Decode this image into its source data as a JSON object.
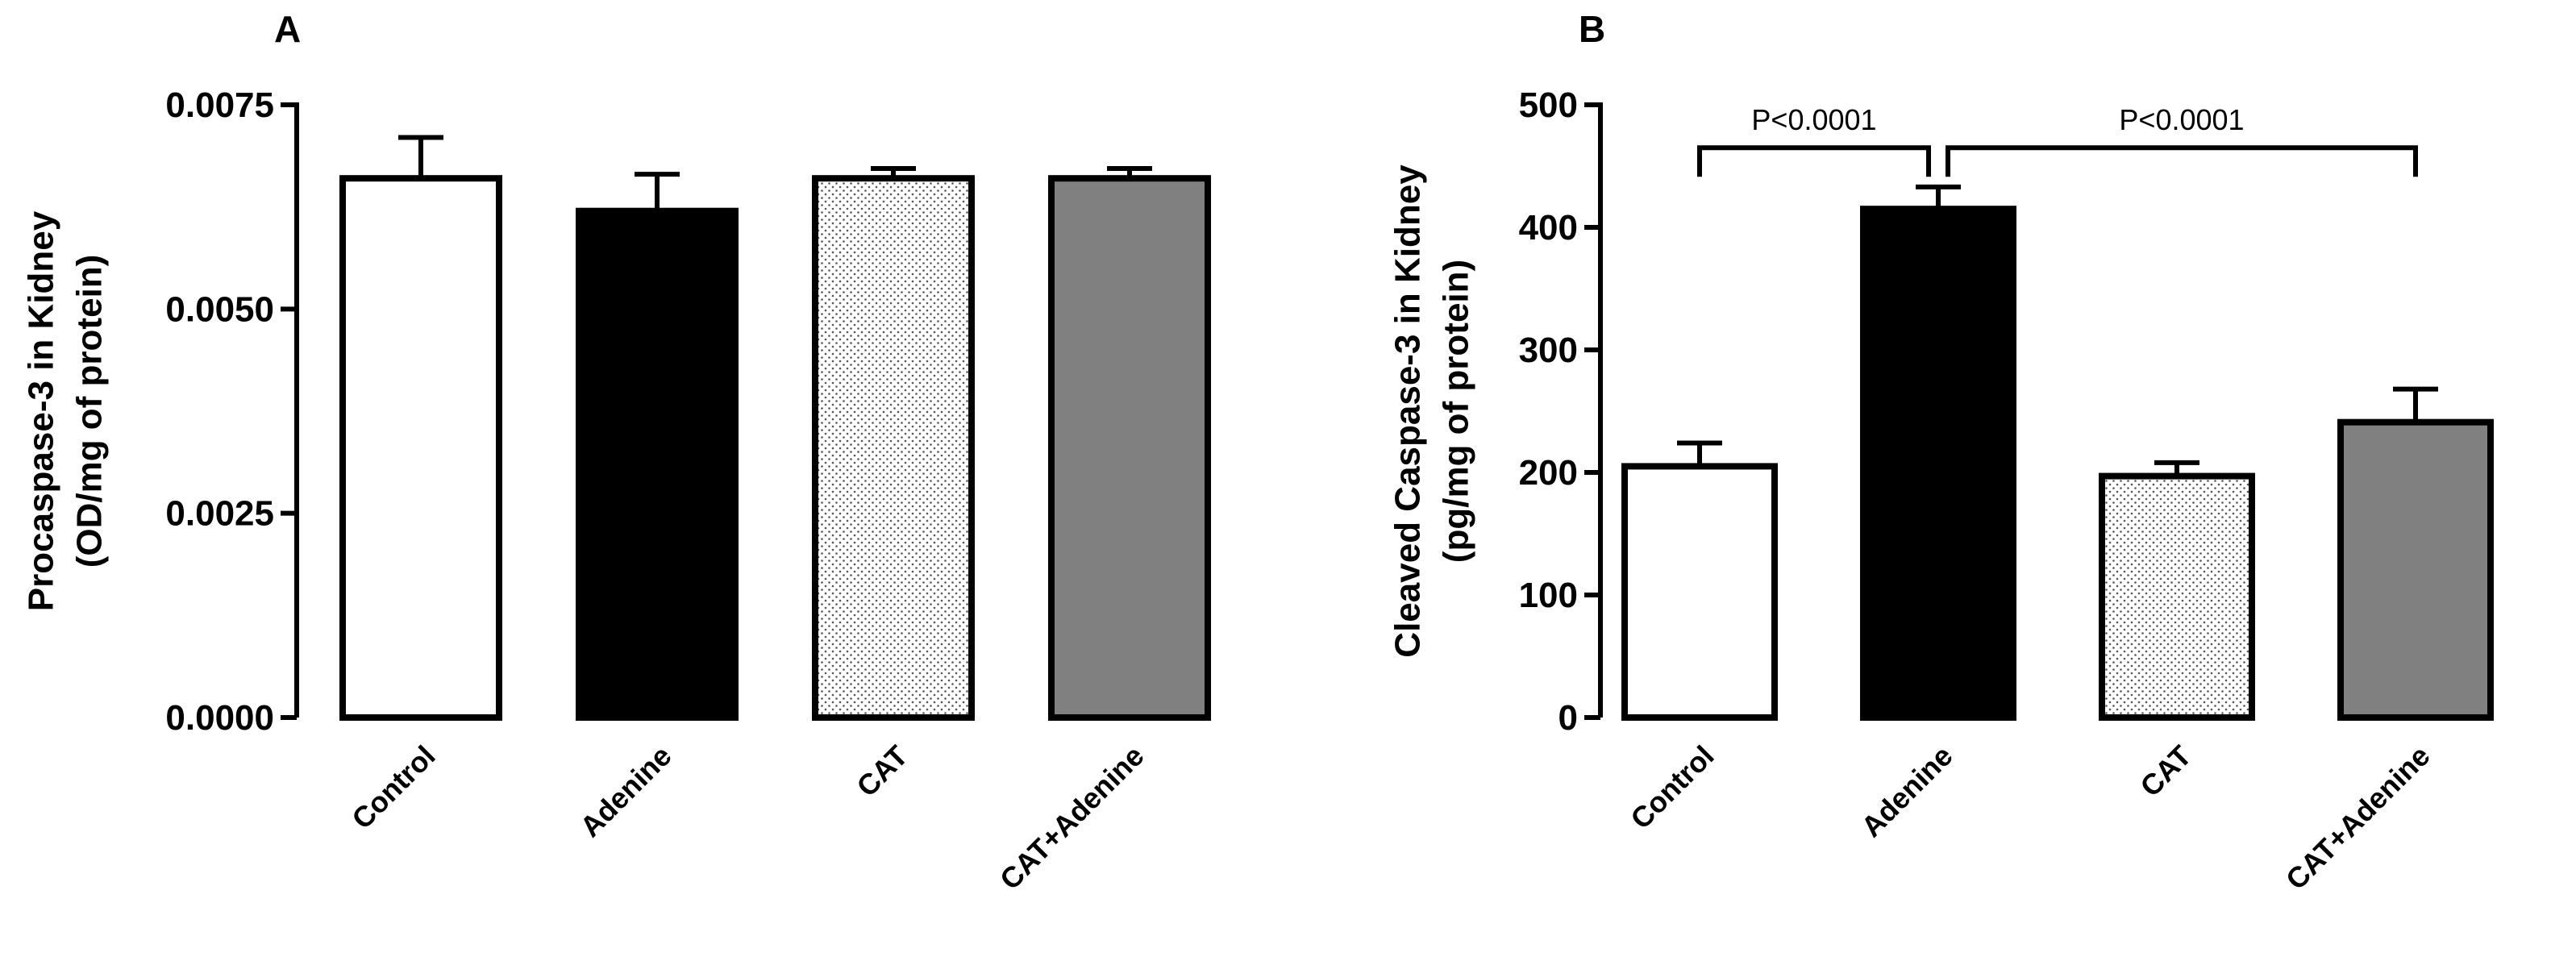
{
  "chart_data": [
    {
      "type": "bar",
      "panel_label": "A",
      "categories": [
        "Control",
        "Adenine",
        "CAT",
        "CAT+Adenine"
      ],
      "values": [
        0.0066,
        0.0062,
        0.0066,
        0.0066
      ],
      "errors": [
        0.0005,
        0.00045,
        0.00012,
        0.00012
      ],
      "fills": [
        "white",
        "black",
        "dotted",
        "gray"
      ],
      "ylabel_line1": "Procaspase-3 in Kidney",
      "ylabel_line2": "(OD/mg of protein)",
      "ylim": [
        0,
        0.0075
      ],
      "yticks": [
        0,
        0.0025,
        0.005,
        0.0075
      ],
      "ytick_labels": [
        "0.0000",
        "0.0025",
        "0.0050",
        "0.0075"
      ],
      "xlabel": "",
      "grid": false,
      "annotations": []
    },
    {
      "type": "bar",
      "panel_label": "B",
      "categories": [
        "Control",
        "Adenine",
        "CAT",
        "CAT+Adenine"
      ],
      "values": [
        205,
        415,
        197,
        241
      ],
      "errors": [
        19,
        18,
        11,
        27
      ],
      "fills": [
        "white",
        "black",
        "dotted",
        "gray"
      ],
      "ylabel_line1": "Cleaved Caspase-3 in Kidney",
      "ylabel_line2": "(pg/mg of protein)",
      "ylim": [
        0,
        500
      ],
      "yticks": [
        0,
        100,
        200,
        300,
        400,
        500
      ],
      "ytick_labels": [
        "0",
        "100",
        "200",
        "300",
        "400",
        "500"
      ],
      "xlabel": "",
      "grid": false,
      "annotations": [
        {
          "text": "P<0.0001",
          "from": "Control",
          "to": "Adenine",
          "y": 465
        },
        {
          "text": "P<0.0001",
          "from": "Adenine",
          "to": "CAT+Adenine",
          "y": 465
        }
      ]
    }
  ],
  "colors": {
    "white": "#ffffff",
    "black": "#000000",
    "gray": "#808080",
    "stroke": "#000000",
    "dot": "#555555"
  }
}
